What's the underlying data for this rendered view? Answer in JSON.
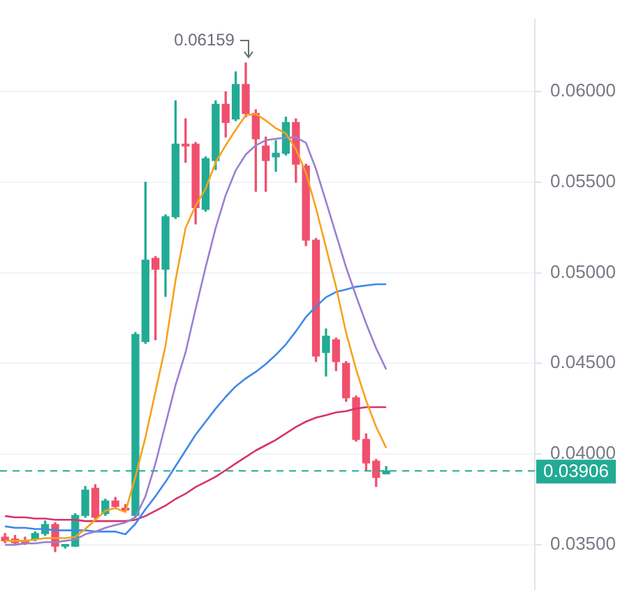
{
  "chart_data": {
    "type": "candlestick",
    "categories": [
      null,
      null,
      null,
      null,
      null,
      null,
      null,
      null,
      null,
      null,
      null,
      null,
      null,
      null,
      null,
      null,
      null,
      null,
      null,
      null,
      null,
      null,
      null,
      null,
      null,
      null,
      null,
      null,
      null,
      null,
      null,
      null,
      null,
      null,
      null,
      null,
      null,
      null,
      null
    ],
    "ohlc": [
      [
        0.0354,
        0.0356,
        0.0351,
        0.0352
      ],
      [
        0.0353,
        0.0355,
        0.035,
        0.0351
      ],
      [
        0.0352,
        0.0354,
        0.035,
        0.0351
      ],
      [
        0.0353,
        0.0357,
        0.0352,
        0.0356
      ],
      [
        0.0356,
        0.0363,
        0.0355,
        0.0361
      ],
      [
        0.0361,
        0.0362,
        0.0346,
        0.0349
      ],
      [
        0.0349,
        0.035,
        0.0348,
        0.035
      ],
      [
        0.0349,
        0.0367,
        0.0349,
        0.0366
      ],
      [
        0.0366,
        0.0382,
        0.0365,
        0.038
      ],
      [
        0.0381,
        0.0383,
        0.0364,
        0.0365
      ],
      [
        0.0367,
        0.0375,
        0.0366,
        0.0374
      ],
      [
        0.0374,
        0.0376,
        0.037,
        0.0371
      ],
      [
        0.037,
        0.0372,
        0.0368,
        0.0369
      ],
      [
        0.0366,
        0.0467,
        0.0365,
        0.0466
      ],
      [
        0.0462,
        0.055,
        0.0461,
        0.0507
      ],
      [
        0.0508,
        0.0509,
        0.0463,
        0.0502
      ],
      [
        0.0502,
        0.0532,
        0.0487,
        0.0531
      ],
      [
        0.0531,
        0.0595,
        0.053,
        0.0571
      ],
      [
        0.0571,
        0.0585,
        0.0561,
        0.057
      ],
      [
        0.0571,
        0.0572,
        0.0527,
        0.0536
      ],
      [
        0.0535,
        0.0564,
        0.0534,
        0.0563
      ],
      [
        0.0562,
        0.0595,
        0.0557,
        0.0593
      ],
      [
        0.0593,
        0.06,
        0.0575,
        0.0583
      ],
      [
        0.0585,
        0.0611,
        0.0584,
        0.0604
      ],
      [
        0.0604,
        0.06159,
        0.0586,
        0.0588
      ],
      [
        0.0588,
        0.059,
        0.0545,
        0.0574
      ],
      [
        0.057,
        0.0575,
        0.0545,
        0.0562
      ],
      [
        0.0564,
        0.0573,
        0.0556,
        0.0566
      ],
      [
        0.0566,
        0.0586,
        0.0565,
        0.0583
      ],
      [
        0.0583,
        0.0585,
        0.055,
        0.056
      ],
      [
        0.0559,
        0.056,
        0.0515,
        0.0518
      ],
      [
        0.0518,
        0.0519,
        0.0451,
        0.0454
      ],
      [
        0.0456,
        0.0469,
        0.0443,
        0.0465
      ],
      [
        0.0463,
        0.0464,
        0.0446,
        0.0451
      ],
      [
        0.045,
        0.0451,
        0.0429,
        0.0431
      ],
      [
        0.0431,
        0.0432,
        0.0407,
        0.0408
      ],
      [
        0.0408,
        0.0411,
        0.0391,
        0.0395
      ],
      [
        0.0396,
        0.0397,
        0.0382,
        0.0387
      ],
      [
        0.0389,
        0.0393,
        0.0389,
        0.03906
      ]
    ],
    "series": [
      {
        "type": "line",
        "color": "#f7a21b",
        "values": [
          0.0352,
          0.0352,
          0.0352,
          0.03527,
          0.03535,
          0.03535,
          0.03535,
          0.03542,
          0.03585,
          0.03636,
          0.03686,
          0.03701,
          0.03679,
          0.03874,
          0.04091,
          0.04344,
          0.04597,
          0.04959,
          0.05248,
          0.05371,
          0.05465,
          0.0561,
          0.05704,
          0.0579,
          0.0587,
          0.05877,
          0.05841,
          0.05798,
          0.05769,
          0.05682,
          0.05552,
          0.05357,
          0.0514,
          0.04923,
          0.0467,
          0.04467,
          0.04294,
          0.04149,
          0.04033
        ]
      },
      {
        "type": "line",
        "color": "#9b7fd0",
        "values": [
          0.03498,
          0.03498,
          0.03506,
          0.03506,
          0.03513,
          0.03513,
          0.0352,
          0.03527,
          0.03556,
          0.03571,
          0.03592,
          0.03607,
          0.03621,
          0.0365,
          0.03766,
          0.03947,
          0.04164,
          0.0438,
          0.04561,
          0.048,
          0.05031,
          0.05248,
          0.05429,
          0.05566,
          0.05653,
          0.05704,
          0.05732,
          0.0574,
          0.05747,
          0.05747,
          0.05718,
          0.05573,
          0.05393,
          0.05212,
          0.05031,
          0.04872,
          0.0472,
          0.04583,
          0.04467
        ]
      },
      {
        "type": "line",
        "color": "#3f88e8",
        "values": [
          0.036,
          0.03592,
          0.03592,
          0.03585,
          0.03585,
          0.03578,
          0.03578,
          0.03578,
          0.03578,
          0.03571,
          0.03571,
          0.03571,
          0.03556,
          0.03614,
          0.03694,
          0.03766,
          0.03845,
          0.03932,
          0.04019,
          0.04106,
          0.04178,
          0.0425,
          0.04315,
          0.04373,
          0.04417,
          0.04453,
          0.04496,
          0.04547,
          0.04605,
          0.04677,
          0.04756,
          0.04814,
          0.04865,
          0.04894,
          0.04908,
          0.04923,
          0.0493,
          0.04937,
          0.04937
        ]
      },
      {
        "type": "line",
        "color": "#d6336c",
        "values": [
          0.03657,
          0.0365,
          0.0365,
          0.03643,
          0.03643,
          0.03636,
          0.03636,
          0.03636,
          0.03629,
          0.03629,
          0.03629,
          0.03629,
          0.03629,
          0.03636,
          0.03657,
          0.03686,
          0.03715,
          0.03751,
          0.0378,
          0.03817,
          0.03845,
          0.03874,
          0.0391,
          0.03947,
          0.03983,
          0.04019,
          0.04048,
          0.04077,
          0.04113,
          0.04149,
          0.04178,
          0.042,
          0.04214,
          0.04229,
          0.04236,
          0.0425,
          0.04258,
          0.04258,
          0.04258
        ]
      }
    ],
    "ylim": [
      0.0325,
      0.064
    ],
    "yticks": [
      {
        "value": 0.035,
        "label": "0.03500"
      },
      {
        "value": 0.04,
        "label": "0.04000"
      },
      {
        "value": 0.045,
        "label": "0.04500"
      },
      {
        "value": 0.05,
        "label": "0.05000"
      },
      {
        "value": 0.055,
        "label": "0.05500"
      },
      {
        "value": 0.06,
        "label": "0.06000"
      }
    ],
    "tick_labels": "y",
    "grid": "y",
    "legend": false,
    "ref_lines": [
      {
        "axis": "y",
        "value": 0.03906,
        "label": "0.03906",
        "color": "#22ab94",
        "line_style": "dashed"
      }
    ],
    "annotations": [
      "0.06159"
    ]
  }
}
